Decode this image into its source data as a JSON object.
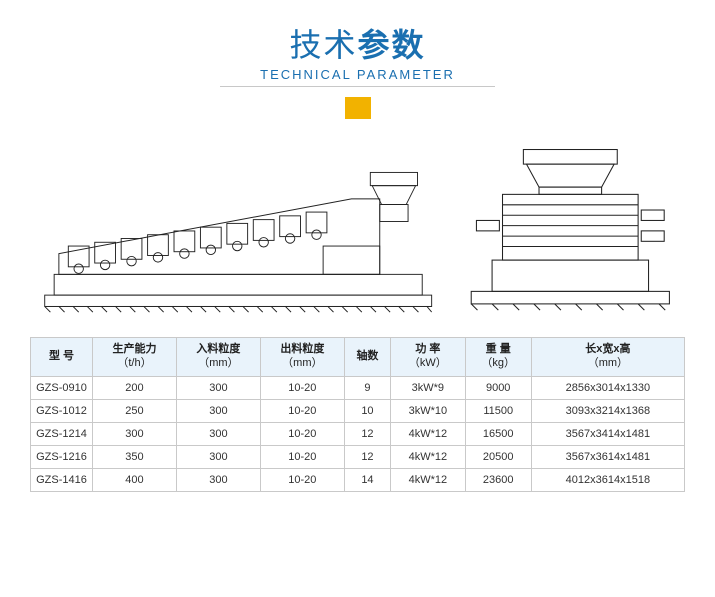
{
  "title": {
    "cn_light": "技术",
    "cn_bold": "参数",
    "en": "TECHNICAL PARAMETER",
    "cn_light_color": "#1a6fb0",
    "cn_bold_color": "#1a6fb0",
    "en_color": "#1a6fb0"
  },
  "accent": {
    "color": "#f2b200"
  },
  "diagram": {
    "stroke": "#222222",
    "bg": "#ffffff"
  },
  "spec_table": {
    "type": "table",
    "header_bg": "#e9f3fb",
    "border_color": "#c9c9c9",
    "font_size": 11,
    "columns": [
      {
        "label": "型 号",
        "unit": ""
      },
      {
        "label": "生产能力",
        "unit": "（t/h）"
      },
      {
        "label": "入料粒度",
        "unit": "（mm）"
      },
      {
        "label": "出料粒度",
        "unit": "（mm）"
      },
      {
        "label": "轴数",
        "unit": ""
      },
      {
        "label": "功 率",
        "unit": "（kW）"
      },
      {
        "label": "重 量",
        "unit": "（kg）"
      },
      {
        "label": "长x宽x高",
        "unit": "（mm）"
      }
    ],
    "rows": [
      [
        "GZS-0910",
        "200",
        "300",
        "10-20",
        "9",
        "3kW*9",
        "9000",
        "2856x3014x1330"
      ],
      [
        "GZS-1012",
        "250",
        "300",
        "10-20",
        "10",
        "3kW*10",
        "11500",
        "3093x3214x1368"
      ],
      [
        "GZS-1214",
        "300",
        "300",
        "10-20",
        "12",
        "4kW*12",
        "16500",
        "3567x3414x1481"
      ],
      [
        "GZS-1216",
        "350",
        "300",
        "10-20",
        "12",
        "4kW*12",
        "20500",
        "3567x3614x1481"
      ],
      [
        "GZS-1416",
        "400",
        "300",
        "10-20",
        "14",
        "4kW*12",
        "23600",
        "4012x3614x1518"
      ]
    ]
  }
}
